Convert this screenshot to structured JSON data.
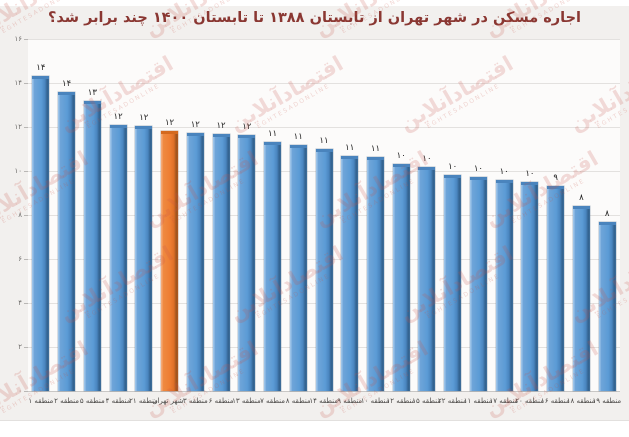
{
  "title": "اجاره مسکن در شهر تهران از تابستان ۱۳۸۸ تا تابستان ۱۴۰۰ چند برابر شد؟",
  "watermark": {
    "fa": "اقتصادآنلاین",
    "en": "EGHTESADONLINE"
  },
  "chart_data": {
    "type": "bar",
    "title": "اجاره مسکن در شهر تهران از تابستان ۱۳۸۸ تا تابستان ۱۴۰۰ چند برابر شد؟",
    "categories": [
      "منطقه ۱",
      "منطقه ۲",
      "منطقه ۵",
      "منطقه ۴",
      "منطقه ۲۱",
      "شهر تهران",
      "منطقه ۳",
      "منطقه ۶",
      "منطقه ۱۳",
      "منطقه ۷",
      "منطقه ۸",
      "منطقه ۱۴",
      "منطقه ۹",
      "منطقه ۱۰",
      "منطقه ۱۲",
      "منطقه ۱۵",
      "منطقه ۲۲",
      "منطقه ۱۱",
      "منطقه ۱۷",
      "منطقه ۲۰",
      "منطقه ۱۶",
      "منطقه ۱۸",
      "منطقه ۱۹"
    ],
    "values": [
      14.3,
      13.6,
      13.2,
      12.1,
      12.05,
      11.8,
      11.75,
      11.7,
      11.65,
      11.3,
      11.2,
      11.0,
      10.7,
      10.65,
      10.3,
      10.2,
      9.8,
      9.75,
      9.6,
      9.5,
      9.3,
      8.4,
      7.7
    ],
    "value_labels": [
      "۱۴",
      "۱۴",
      "۱۳",
      "۱۲",
      "۱۲",
      "۱۲",
      "۱۲",
      "۱۲",
      "۱۲",
      "۱۱",
      "۱۱",
      "۱۱",
      "۱۱",
      "۱۱",
      "۱۰",
      "۱۰",
      "۱۰",
      "۱۰",
      "۱۰",
      "۱۰",
      "۹",
      "۸",
      "۸"
    ],
    "highlight_index": 5,
    "highlight_category": "شهر تهران",
    "xlabel": "",
    "ylabel": "",
    "ylim": [
      0,
      16
    ],
    "ytick_step": 2,
    "ytick_labels": [
      "۰",
      "۲",
      "۴",
      "۶",
      "۸",
      "۱۰",
      "۱۲",
      "۱۴",
      "۱۶"
    ],
    "grid": true,
    "legend": false,
    "bar_color": "#5B9BD5",
    "bar_edge_color": "#41719C",
    "highlight_color": "#ED7D31",
    "highlight_edge_color": "#AE5A21",
    "title_color": "#8a3732",
    "background_color": "#f2f0ee"
  }
}
